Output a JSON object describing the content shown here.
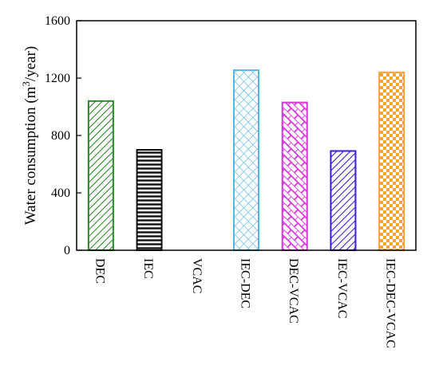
{
  "chart_data": {
    "type": "bar",
    "title": "",
    "xlabel": "",
    "ylabel": "Water consumption (m",
    "ylabel_sup": "3",
    "ylabel_tail": "/year)",
    "ylim": [
      0,
      1600
    ],
    "yticks": [
      0,
      400,
      800,
      1200,
      1600
    ],
    "ytick_labels": [
      "0",
      "400",
      "800",
      "1200",
      "1600"
    ],
    "grid": false,
    "legend": "none",
    "categories": [
      "DEC",
      "IEC",
      "VCAC",
      "IEC-DEC",
      "DEC-VCAC",
      "IEC-VCAC",
      "IEC-DEC-VCAC"
    ],
    "values": [
      1040,
      700,
      0,
      1255,
      1030,
      692,
      1240
    ],
    "colors": [
      "#2a8a2a",
      "#111111",
      "#888888",
      "#55b8e0",
      "#d63ad6",
      "#3a1fd6",
      "#f5a23a"
    ],
    "patterns": [
      "diagonal-right",
      "horizontal",
      "none",
      "crosshatch",
      "brick",
      "diagonal-right",
      "checker"
    ]
  }
}
